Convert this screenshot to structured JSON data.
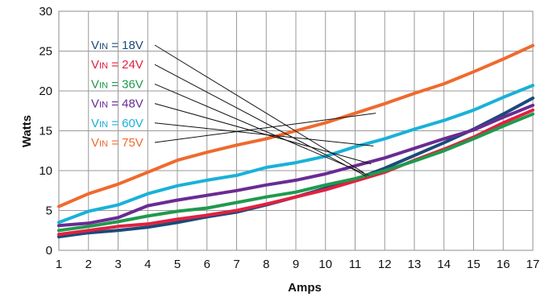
{
  "chart_data": {
    "type": "line",
    "xlabel": "Amps",
    "ylabel": "Watts",
    "x": [
      1,
      2,
      3,
      4,
      5,
      6,
      7,
      8,
      9,
      10,
      11,
      12,
      13,
      14,
      15,
      16,
      17
    ],
    "xlim": [
      1,
      17
    ],
    "ylim": [
      0,
      30
    ],
    "yticks": [
      0,
      5,
      10,
      15,
      20,
      25,
      30
    ],
    "grid": true,
    "legend_placement": "upper-left, with leader lines to curves",
    "series": [
      {
        "prefix": "V",
        "sub": "IN",
        "suffix": " = 18V",
        "color": "#1b4a7a",
        "values": [
          1.7,
          2.2,
          2.5,
          2.9,
          3.5,
          4.2,
          4.8,
          5.7,
          6.7,
          7.8,
          8.9,
          10.3,
          11.9,
          13.5,
          15.2,
          17.1,
          19.1
        ]
      },
      {
        "prefix": "V",
        "sub": "IN",
        "suffix": " = 24V",
        "color": "#e3203f",
        "values": [
          2.0,
          2.5,
          3.0,
          3.3,
          3.9,
          4.4,
          5.0,
          5.8,
          6.7,
          7.6,
          8.7,
          9.8,
          11.3,
          12.7,
          14.2,
          16.0,
          17.6
        ]
      },
      {
        "prefix": "V",
        "sub": "IN",
        "suffix": " = 36V",
        "color": "#1f9a4e",
        "values": [
          2.5,
          3.0,
          3.6,
          4.3,
          4.9,
          5.3,
          6.0,
          6.7,
          7.3,
          8.2,
          9.0,
          10.0,
          11.2,
          12.5,
          14.0,
          15.6,
          17.1
        ]
      },
      {
        "prefix": "V",
        "sub": "IN",
        "suffix": " = 48V",
        "color": "#6a2b93",
        "values": [
          3.1,
          3.4,
          4.1,
          5.6,
          6.3,
          6.9,
          7.5,
          8.2,
          8.8,
          9.6,
          10.6,
          11.6,
          12.8,
          14.0,
          15.1,
          16.7,
          18.2
        ]
      },
      {
        "prefix": "V",
        "sub": "IN",
        "suffix": " = 60V",
        "color": "#1ab1d8",
        "values": [
          3.5,
          4.9,
          5.7,
          7.1,
          8.1,
          8.8,
          9.4,
          10.4,
          11.0,
          11.8,
          13.0,
          14.0,
          15.2,
          16.3,
          17.6,
          19.2,
          20.7
        ]
      },
      {
        "prefix": "V",
        "sub": "IN",
        "suffix": " = 75V",
        "color": "#ef6a2e",
        "values": [
          5.5,
          7.1,
          8.3,
          9.8,
          11.3,
          12.3,
          13.2,
          14.0,
          15.0,
          16.0,
          17.2,
          18.4,
          19.7,
          20.9,
          22.4,
          24.0,
          25.7
        ]
      }
    ]
  }
}
